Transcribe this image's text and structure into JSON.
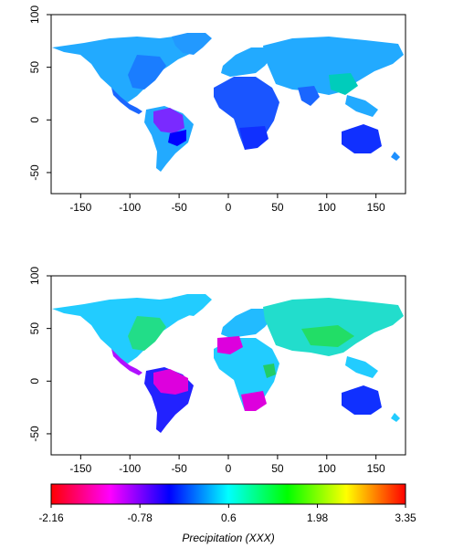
{
  "chart_data": [
    {
      "type": "heatmap",
      "title": "",
      "xlabel": "",
      "ylabel": "",
      "xlim": [
        -180,
        180
      ],
      "ylim": [
        -70,
        100
      ],
      "x_ticks": [
        -150,
        -100,
        -50,
        0,
        50,
        100,
        150
      ],
      "y_ticks": [
        100,
        50,
        0,
        -50
      ],
      "grid": false,
      "legend": "none"
    },
    {
      "type": "heatmap",
      "title": "",
      "xlabel": "",
      "ylabel": "",
      "xlim": [
        -180,
        180
      ],
      "ylim": [
        -70,
        100
      ],
      "x_ticks": [
        -150,
        -100,
        -50,
        0,
        50,
        100,
        150
      ],
      "y_ticks": [
        100,
        50,
        0,
        -50
      ],
      "grid": false,
      "legend": "bottom"
    }
  ],
  "colorbar": {
    "title": "Precipitation (XXX)",
    "min": -2.16,
    "max": 3.35,
    "tick_values": [
      -2.16,
      -0.78,
      0.6,
      1.98,
      3.35
    ],
    "tick_labels": [
      "-2.16",
      "-0.78",
      "0.6",
      "1.98",
      "3.35"
    ],
    "colors": [
      "#ff0000",
      "#ff00ff",
      "#0000ff",
      "#00ffff",
      "#00ff00",
      "#ffff00",
      "#ff0000"
    ]
  },
  "colors": {
    "ocean": "#ffffff",
    "frame": "#000000"
  }
}
